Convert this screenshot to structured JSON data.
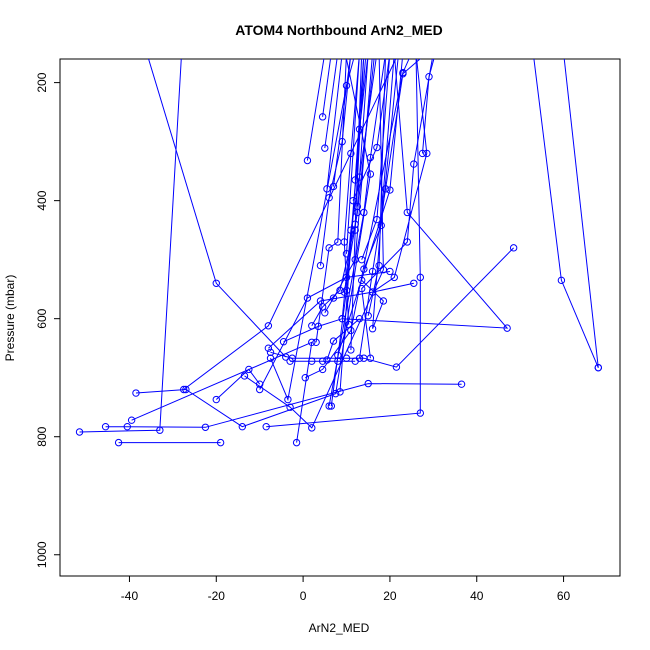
{
  "chart_data": {
    "type": "line",
    "title": "ATOM4 Northbound ArN2_MED",
    "xlabel": "ArN2_MED",
    "ylabel": "Pressure (mbar)",
    "xlim": [
      -56,
      73
    ],
    "ylim": [
      1036,
      160
    ],
    "y_reversed": true,
    "x_ticks": [
      -40,
      -20,
      0,
      20,
      40,
      60
    ],
    "y_ticks": [
      200,
      400,
      600,
      800,
      1000
    ],
    "grid": false,
    "legend": "none",
    "color": "#0000ff",
    "marker": "open-circle",
    "series": [
      {
        "points": [
          [
            -51.5,
            792
          ],
          [
            -33,
            789
          ],
          [
            -28,
            150
          ]
        ]
      },
      {
        "points": [
          [
            -45.5,
            783
          ],
          [
            -40.5,
            783
          ],
          [
            -22.5,
            784
          ],
          [
            15,
            710
          ],
          [
            36.5,
            711
          ]
        ]
      },
      {
        "points": [
          [
            -42.5,
            810
          ],
          [
            -19,
            810
          ]
        ]
      },
      {
        "points": [
          [
            -39.5,
            772
          ],
          [
            2,
            640
          ],
          [
            -1.5,
            810
          ]
        ]
      },
      {
        "points": [
          [
            -38.5,
            726
          ],
          [
            -27,
            720
          ],
          [
            -14,
            783
          ],
          [
            7.5,
            727
          ],
          [
            15.5,
            355
          ],
          [
            10,
            160
          ]
        ]
      },
      {
        "points": [
          [
            -27.5,
            720
          ],
          [
            -8,
            612
          ],
          [
            22,
            150
          ]
        ]
      },
      {
        "points": [
          [
            -20,
            737
          ],
          [
            -12.5,
            686
          ],
          [
            -10,
            711
          ]
        ]
      },
      {
        "points": [
          [
            -13.5,
            697
          ],
          [
            -3,
            750
          ],
          [
            2,
            785
          ],
          [
            18.5,
            517
          ],
          [
            17.5,
            150
          ]
        ]
      },
      {
        "points": [
          [
            -8.5,
            783
          ],
          [
            27,
            760
          ],
          [
            27,
            530
          ],
          [
            26,
            150
          ]
        ]
      },
      {
        "points": [
          [
            -7.5,
            667
          ],
          [
            -3.5,
            737
          ],
          [
            10,
            205
          ],
          [
            12,
            150
          ]
        ]
      },
      {
        "points": [
          [
            -7.5,
            657
          ],
          [
            -2.5,
            667
          ],
          [
            10,
            667
          ],
          [
            14,
            667
          ],
          [
            21.5,
            682
          ],
          [
            48.5,
            480
          ]
        ]
      },
      {
        "points": [
          [
            -4.5,
            639
          ],
          [
            3.5,
            613
          ],
          [
            9,
            600
          ],
          [
            47,
            616
          ],
          [
            24,
            420
          ],
          [
            21,
            150
          ]
        ]
      },
      {
        "points": [
          [
            0.5,
            700
          ],
          [
            4.5,
            686
          ],
          [
            11,
            620
          ],
          [
            23,
            183
          ],
          [
            25,
            150
          ]
        ]
      },
      {
        "points": [
          [
            1,
            332
          ],
          [
            5,
            150
          ]
        ]
      },
      {
        "points": [
          [
            4.5,
            258
          ],
          [
            6.5,
            150
          ]
        ]
      },
      {
        "points": [
          [
            5,
            311
          ],
          [
            8,
            150
          ]
        ]
      },
      {
        "points": [
          [
            5.5,
            380
          ],
          [
            9,
            150
          ]
        ]
      },
      {
        "points": [
          [
            5.5,
            670
          ],
          [
            7,
            638
          ],
          [
            13,
            600
          ]
        ]
      },
      {
        "points": [
          [
            6,
            748
          ],
          [
            14,
            420
          ],
          [
            15.5,
            327
          ],
          [
            19,
            150
          ]
        ]
      },
      {
        "points": [
          [
            6.5,
            748
          ],
          [
            10,
            552
          ],
          [
            14.5,
            150
          ]
        ]
      },
      {
        "points": [
          [
            7,
            376
          ],
          [
            11,
            150
          ]
        ]
      },
      {
        "points": [
          [
            8,
            662
          ],
          [
            20,
            382
          ],
          [
            23,
            150
          ]
        ]
      },
      {
        "points": [
          [
            8.5,
            724
          ],
          [
            13,
            279
          ],
          [
            15,
            150
          ]
        ]
      },
      {
        "points": [
          [
            9.5,
            555
          ],
          [
            12.5,
            420
          ],
          [
            16.5,
            150
          ]
        ]
      },
      {
        "points": [
          [
            10,
            490
          ],
          [
            13,
            150
          ]
        ]
      },
      {
        "points": [
          [
            10.5,
            610
          ],
          [
            9.5,
            470
          ],
          [
            11,
            320
          ],
          [
            13,
            150
          ]
        ]
      },
      {
        "points": [
          [
            11,
            653
          ],
          [
            12,
            450
          ],
          [
            13.5,
            150
          ]
        ]
      },
      {
        "points": [
          [
            11.5,
            400
          ],
          [
            17,
            310
          ],
          [
            20,
            150
          ]
        ]
      },
      {
        "points": [
          [
            12,
            365
          ],
          [
            14,
            150
          ]
        ]
      },
      {
        "points": [
          [
            12.5,
            410
          ],
          [
            15,
            150
          ]
        ]
      },
      {
        "points": [
          [
            13,
            667
          ],
          [
            16,
            520
          ],
          [
            19,
            380
          ],
          [
            23,
            185
          ],
          [
            28.5,
            150
          ]
        ]
      },
      {
        "points": [
          [
            13.5,
            500
          ],
          [
            17,
            432
          ],
          [
            20,
            150
          ]
        ]
      },
      {
        "points": [
          [
            13.5,
            535
          ],
          [
            18.5,
            570
          ],
          [
            16,
            617
          ],
          [
            21,
            150
          ]
        ]
      },
      {
        "points": [
          [
            14,
            516
          ],
          [
            18,
            442
          ],
          [
            22,
            150
          ]
        ]
      },
      {
        "points": [
          [
            15,
            595
          ],
          [
            17.5,
            510
          ],
          [
            19,
            150
          ]
        ]
      },
      {
        "points": [
          [
            15.5,
            667
          ],
          [
            13.5,
            549
          ],
          [
            24,
            470
          ],
          [
            25.5,
            338
          ],
          [
            30,
            150
          ]
        ]
      },
      {
        "points": [
          [
            16,
            555
          ],
          [
            21,
            530
          ],
          [
            28.5,
            320
          ],
          [
            26,
            150
          ]
        ]
      },
      {
        "points": [
          [
            27.5,
            320
          ],
          [
            29,
            190
          ],
          [
            30.5,
            150
          ]
        ]
      },
      {
        "points": [
          [
            53,
            150
          ],
          [
            59.5,
            535
          ],
          [
            68,
            683
          ]
        ]
      },
      {
        "points": [
          [
            60,
            150
          ],
          [
            68,
            683
          ]
        ]
      },
      {
        "points": [
          [
            -36,
            150
          ],
          [
            -20,
            540
          ],
          [
            -4,
            665
          ]
        ]
      },
      {
        "points": [
          [
            -8,
            650
          ],
          [
            4,
            570
          ],
          [
            16,
            555
          ],
          [
            25.5,
            540
          ]
        ]
      },
      {
        "points": [
          [
            -3,
            672
          ],
          [
            2,
            672
          ],
          [
            4.5,
            672
          ],
          [
            8,
            672
          ],
          [
            12,
            672
          ]
        ]
      },
      {
        "points": [
          [
            2,
            612
          ],
          [
            4.5,
            580
          ],
          [
            8.5,
            552
          ],
          [
            12,
            440
          ],
          [
            14,
            150
          ]
        ]
      },
      {
        "points": [
          [
            3,
            640
          ],
          [
            6,
            480
          ],
          [
            8,
            470
          ],
          [
            10,
            150
          ]
        ]
      },
      {
        "points": [
          [
            -10,
            720
          ],
          [
            1,
            565
          ],
          [
            10,
            530
          ],
          [
            20,
            520
          ]
        ]
      },
      {
        "points": [
          [
            5,
            590
          ],
          [
            7,
            565
          ],
          [
            12,
            500
          ],
          [
            16,
            150
          ]
        ]
      },
      {
        "points": [
          [
            4,
            510
          ],
          [
            6,
            395
          ],
          [
            9,
            300
          ],
          [
            11,
            150
          ]
        ]
      },
      {
        "points": [
          [
            9,
            600
          ],
          [
            11,
            450
          ],
          [
            13,
            360
          ],
          [
            17,
            150
          ]
        ]
      }
    ]
  }
}
